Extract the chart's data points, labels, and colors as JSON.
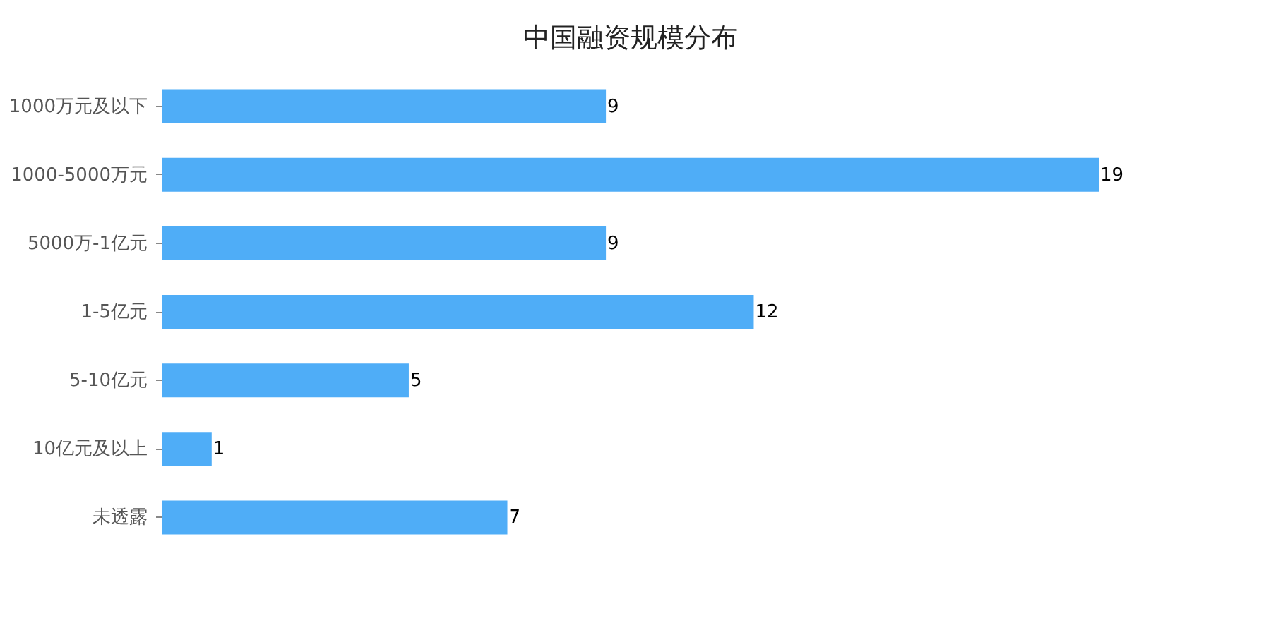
{
  "chart_data": {
    "type": "bar",
    "orientation": "horizontal",
    "title": "中国融资规模分布",
    "categories": [
      "1000万元及以下",
      "1000-5000万元",
      "5000万-1亿元",
      "1-5亿元",
      "5-10亿元",
      "10亿元及以上",
      "未透露"
    ],
    "values": [
      9,
      19,
      9,
      12,
      5,
      1,
      7
    ],
    "color": "#4fadf7",
    "data_labels": true,
    "tick_labels": "y",
    "grid": false
  }
}
